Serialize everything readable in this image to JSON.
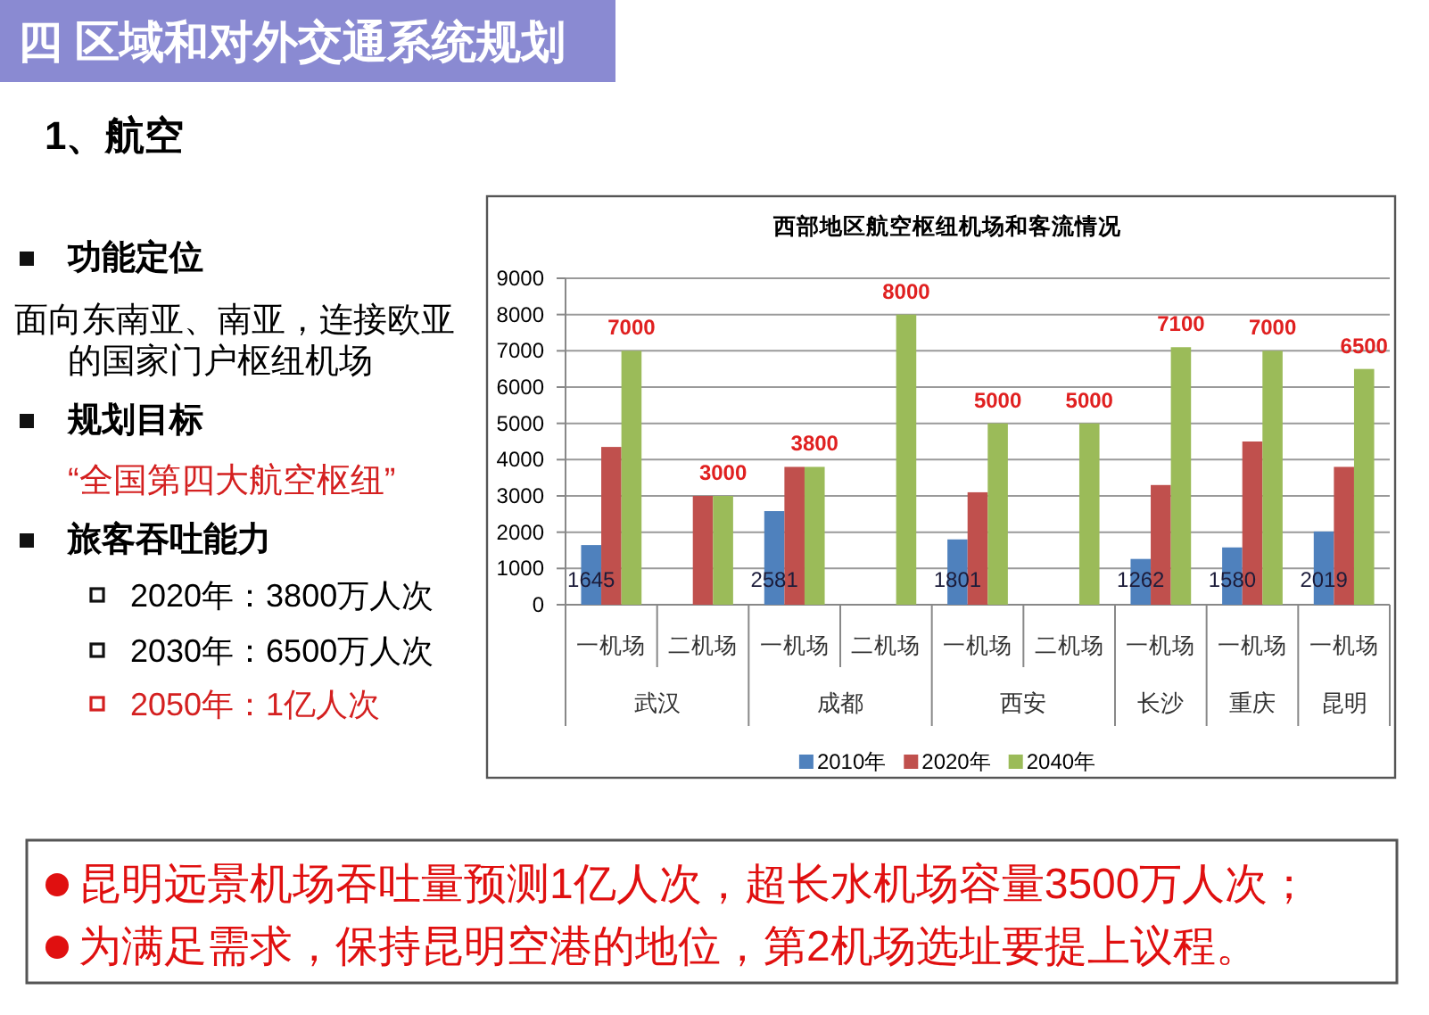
{
  "chart_data": {
    "type": "bar",
    "title": "西部地区航空枢纽机场和客流情况",
    "categories": [
      "一机场",
      "二机场",
      "一机场",
      "二机场",
      "一机场",
      "二机场",
      "一机场",
      "一机场",
      "一机场"
    ],
    "series": [
      {
        "name": "2010年",
        "color": "#4f81bd",
        "values": [
          1645,
          null,
          2581,
          null,
          1801,
          null,
          1262,
          1580,
          2019
        ],
        "value_labels": [
          "1645",
          null,
          "2581",
          null,
          "1801",
          null,
          "1262",
          "1580",
          "2019"
        ]
      },
      {
        "name": "2020年",
        "color": "#c0504d",
        "values": [
          4350,
          3000,
          3800,
          null,
          3100,
          null,
          3300,
          4500,
          3800
        ]
      },
      {
        "name": "2040年",
        "color": "#9bbb59",
        "values": [
          7000,
          3000,
          3800,
          8000,
          5000,
          5000,
          7100,
          7000,
          6500
        ],
        "value_labels": [
          "7000",
          "3000",
          "3800",
          "8000",
          "5000",
          "5000",
          "7100",
          "7000",
          "6500"
        ]
      }
    ],
    "ylim": [
      0,
      9000
    ],
    "yticks": [
      0,
      1000,
      2000,
      3000,
      4000,
      5000,
      6000,
      7000,
      8000,
      9000
    ],
    "grid": "y",
    "legend": "bottom",
    "annotations": [
      "四 区域和对外交通系统规划",
      "1、航空",
      "功能定位",
      "面向东南亚、南亚，连接欧亚的国家门户枢纽机场",
      "规划目标",
      "“全国第四大航空枢纽”",
      "旅客吞吐能力",
      "2020年：3800万人次",
      "2030年：6500万人次",
      "2050年：1亿人次",
      "昆明远景机场吞吐量预测1亿人次，超长水机场容量3500万人次；",
      "为满足需求，保持昆明空港的地位，第2机场选址要提上议程。",
      "武汉",
      "成都",
      "西安",
      "长沙",
      "重庆",
      "昆明"
    ]
  }
}
